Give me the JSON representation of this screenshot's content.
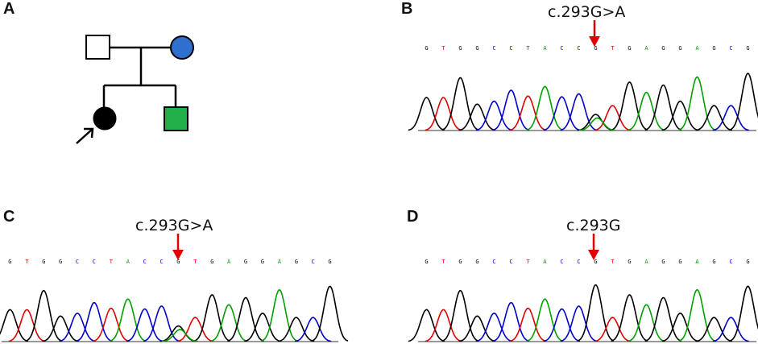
{
  "panels": {
    "A": {
      "label": "A"
    },
    "B": {
      "label": "B",
      "mutation": "c.293G>A"
    },
    "C": {
      "label": "C",
      "mutation": "c.293G>A"
    },
    "D": {
      "label": "D",
      "mutation": "c.293G"
    }
  },
  "sequence": [
    "G",
    "T",
    "G",
    "G",
    "C",
    "C",
    "T",
    "A",
    "C",
    "C",
    "G",
    "T",
    "G",
    "A",
    "G",
    "G",
    "A",
    "G",
    "C",
    "G"
  ],
  "base_colors": {
    "G": "#000000",
    "A": "#00a000",
    "T": "#e00000",
    "C": "#0000cc"
  },
  "arrow_color": "#e00000",
  "pedigree_colors": {
    "mother": "#2f6fd0",
    "brother": "#22b04a",
    "proband": "#000000"
  }
}
